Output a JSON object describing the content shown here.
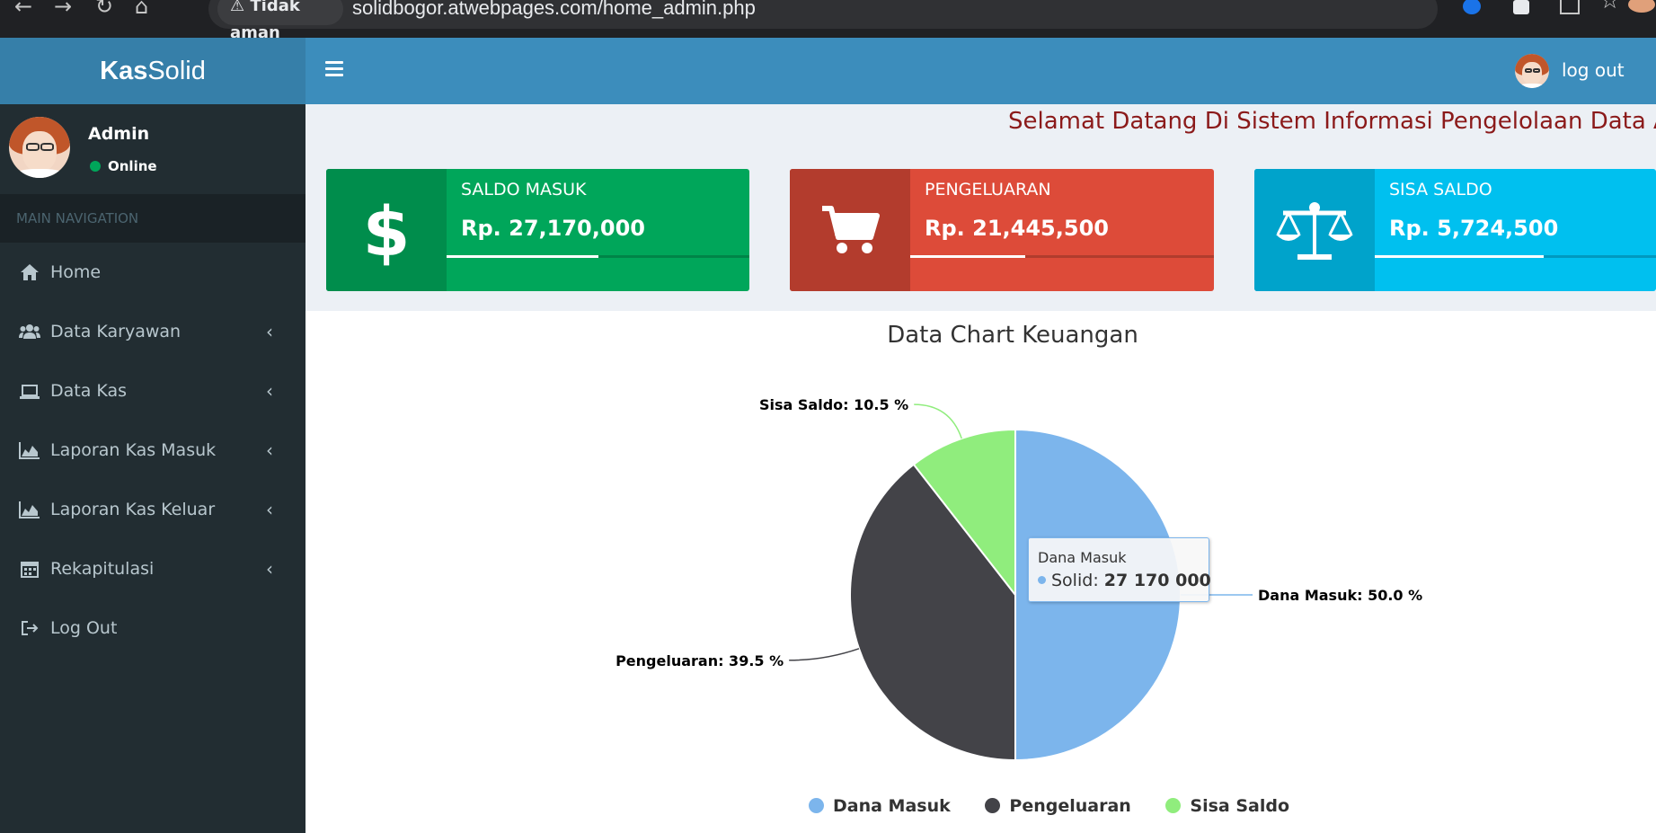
{
  "browser": {
    "security_label": "⚠ Tidak aman",
    "url": "solidbogor.atwebpages.com/home_admin.php"
  },
  "app": {
    "logo_bold": "Kas",
    "logo_regular": "Solid",
    "logout_label": "log out"
  },
  "user": {
    "name": "Admin",
    "status": "Online"
  },
  "sidebar": {
    "header": "MAIN NAVIGATION",
    "items": [
      {
        "label": "Home",
        "icon": "home-icon",
        "has_submenu": false
      },
      {
        "label": "Data Karyawan",
        "icon": "users-icon",
        "has_submenu": true
      },
      {
        "label": "Data Kas",
        "icon": "laptop-icon",
        "has_submenu": true
      },
      {
        "label": "Laporan Kas Masuk",
        "icon": "area-chart-icon",
        "has_submenu": true
      },
      {
        "label": "Laporan Kas Keluar",
        "icon": "area-chart-icon",
        "has_submenu": true
      },
      {
        "label": "Rekapitulasi",
        "icon": "calendar-icon",
        "has_submenu": true
      },
      {
        "label": "Log Out",
        "icon": "sign-out-icon",
        "has_submenu": false
      }
    ]
  },
  "welcome": "Selamat Datang Di Sistem Informasi Pengelolaan Data Admin",
  "info_boxes": [
    {
      "label": "SALDO MASUK",
      "value": "Rp. 27,170,000",
      "icon": "dollar-icon",
      "progress_percent": 50,
      "color": "#00a65a"
    },
    {
      "label": "PENGELUARAN",
      "value": "Rp. 21,445,500",
      "icon": "cart-icon",
      "progress_percent": 38,
      "color": "#dd4b39"
    },
    {
      "label": "SISA SALDO",
      "value": "Rp. 5,724,500",
      "icon": "balance-scale-icon",
      "progress_percent": 60,
      "color": "#00c0ef"
    }
  ],
  "chart_data": {
    "type": "pie",
    "title": "Data Chart Keuangan",
    "series_name": "Solid",
    "slices": [
      {
        "name": "Dana Masuk",
        "value": 27170000,
        "percent_label": "Dana Masuk: 50.0 %",
        "color": "#7cb5ec"
      },
      {
        "name": "Pengeluaran",
        "value": 21445500,
        "percent_label": "Pengeluaran: 39.5 %",
        "color": "#434348"
      },
      {
        "name": "Sisa Saldo",
        "value": 5724500,
        "percent_label": "Sisa Saldo: 10.5 %",
        "color": "#90ed7d"
      }
    ],
    "legend": [
      "Dana Masuk",
      "Pengeluaran",
      "Sisa Saldo"
    ],
    "legend_position": "bottom",
    "tooltip": {
      "header": "Dana Masuk",
      "series": "Solid",
      "value": "27 170 000"
    }
  }
}
